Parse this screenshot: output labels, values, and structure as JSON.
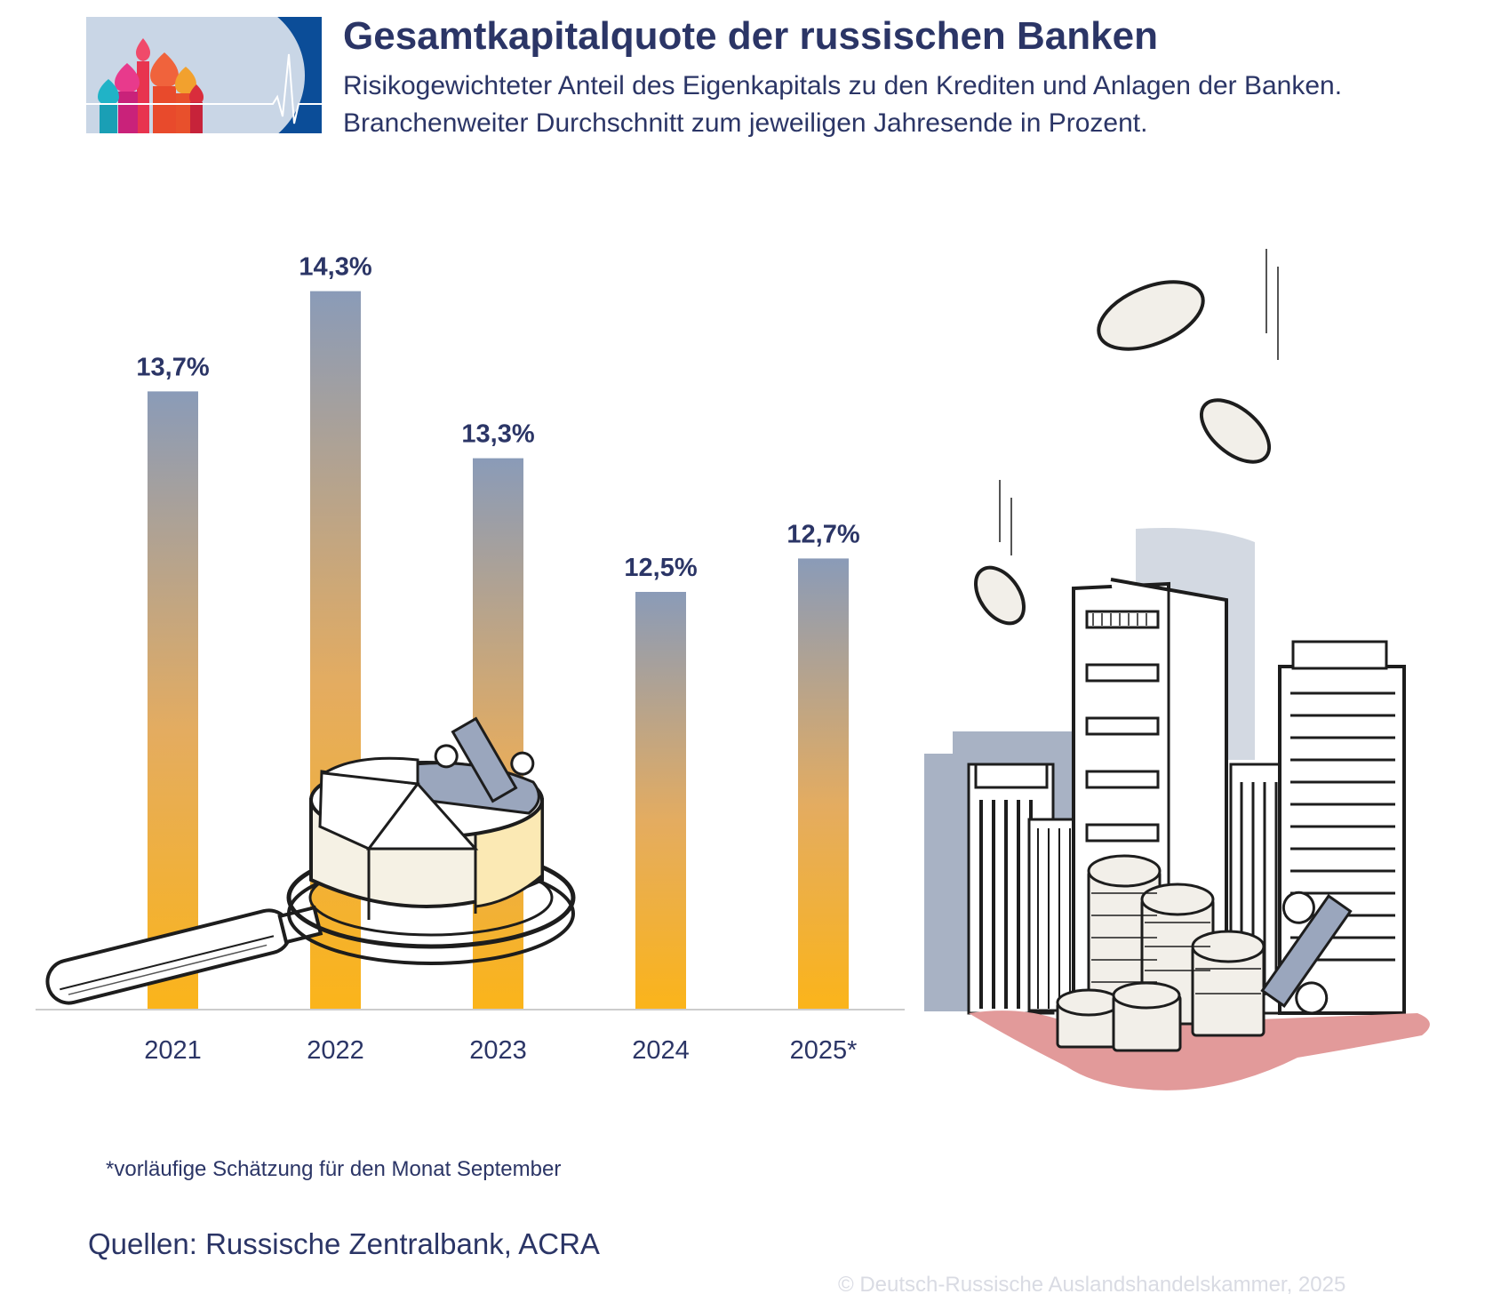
{
  "header": {
    "title": "Gesamtkapitalquote der russischen Banken",
    "subtitle_line1": "Risikogewichteter Anteil des Eigenkapitals zu den Krediten und Anlagen der Banken.",
    "subtitle_line2": "Branchenweiter Durchschnitt zum jeweiligen Jahresende in Prozent."
  },
  "chart_data": {
    "type": "bar",
    "title": "Gesamtkapitalquote der russischen Banken",
    "categories": [
      "2021",
      "2022",
      "2023",
      "2024",
      "2025*"
    ],
    "values": [
      13.7,
      14.3,
      13.3,
      12.5,
      12.7
    ],
    "data_labels": [
      "13,7%",
      "14,3%",
      "13,3%",
      "12,5%",
      "12,7%"
    ],
    "xlabel": "",
    "ylabel": "",
    "ylim": [
      10.0,
      14.5
    ],
    "grid": false,
    "legend": "none",
    "colors": {
      "bar_top": "#8a9bb8",
      "bar_bottom": "#fbb41a",
      "label": "#2b3566",
      "axis": "#cccccc"
    }
  },
  "footnote": "*vorläufige Schätzung für den Monat September",
  "sources": "Quellen: Russische Zentralbank, ACRA",
  "copyright": "© Deutsch-Russische Auslandshandelskammer, 2025",
  "illustrations": {
    "logo": "kremlin-domes-heartbeat-logo",
    "magnifier": "magnifying-glass-pie-chart-illustration",
    "city": "skyscrapers-coin-stacks-illustration"
  }
}
